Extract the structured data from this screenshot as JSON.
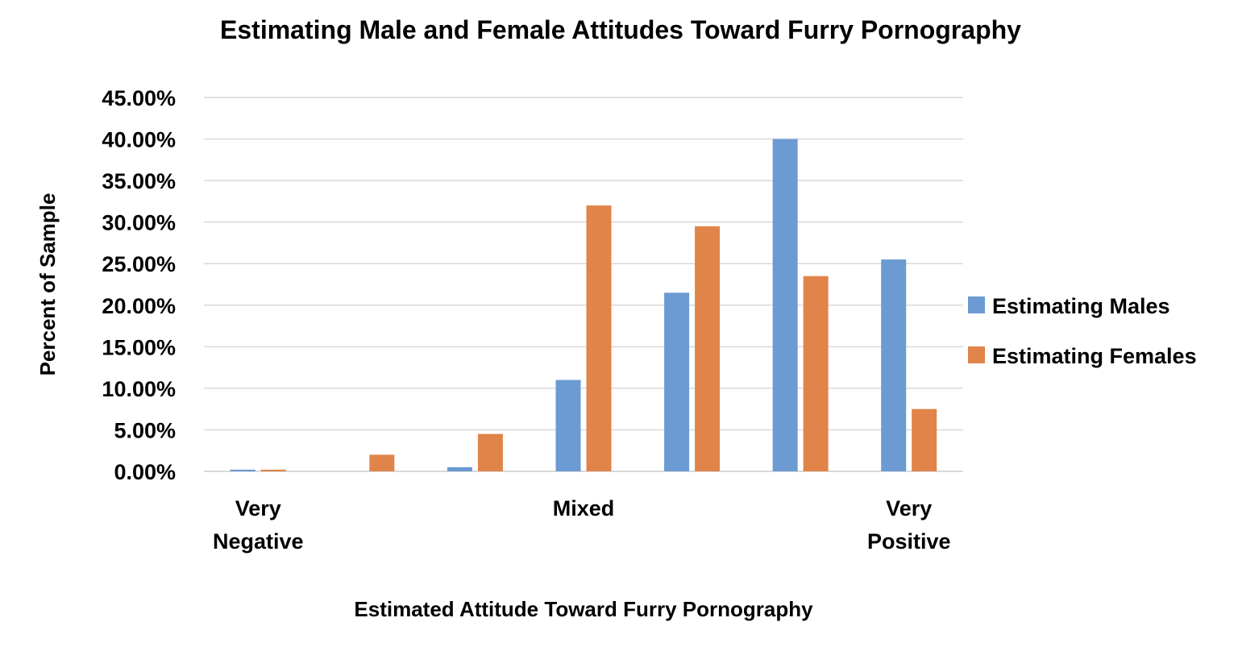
{
  "chart_data": {
    "type": "bar",
    "title": "Estimating Male and Female Attitudes Toward Furry Pornography",
    "xlabel": "Estimated Attitude Toward Furry Pornography",
    "ylabel": "Percent of Sample",
    "categories": [
      "Very\nNegative",
      "",
      "",
      "Mixed",
      "",
      "",
      "Very\nPositive"
    ],
    "series": [
      {
        "name": "Estimating Males",
        "color": "#6b9bd2",
        "values": [
          0.2,
          0.0,
          0.5,
          11.0,
          21.5,
          40.0,
          25.5
        ]
      },
      {
        "name": "Estimating Females",
        "color": "#e0844a",
        "values": [
          0.2,
          2.0,
          4.5,
          32.0,
          29.5,
          23.5,
          7.5
        ]
      }
    ],
    "yticks": [
      "0.00%",
      "5.00%",
      "10.00%",
      "15.00%",
      "20.00%",
      "25.00%",
      "30.00%",
      "35.00%",
      "40.00%",
      "45.00%"
    ],
    "ylim": [
      0,
      45
    ],
    "grid": true,
    "legend_position": "right"
  }
}
